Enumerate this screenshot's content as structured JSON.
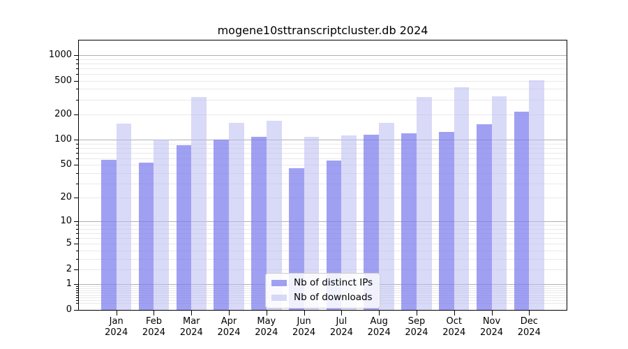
{
  "chart_data": {
    "type": "bar",
    "title": "mogene10sttranscriptcluster.db 2024",
    "categories": [
      "Jan",
      "Feb",
      "Mar",
      "Apr",
      "May",
      "Jun",
      "Jul",
      "Aug",
      "Sep",
      "Oct",
      "Nov",
      "Dec"
    ],
    "year": "2024",
    "series": [
      {
        "name": "Nb of distinct IPs",
        "color": "rgba(124,124,238,0.72)",
        "values": [
          58,
          53,
          86,
          100,
          108,
          46,
          57,
          115,
          120,
          124,
          154,
          215
        ]
      },
      {
        "name": "Nb of downloads",
        "color": "rgba(186,186,243,0.55)",
        "values": [
          155,
          100,
          320,
          160,
          168,
          108,
          112,
          160,
          320,
          420,
          330,
          505
        ]
      }
    ],
    "yscale": "log1p",
    "ylim": [
      0,
      1490
    ],
    "yticks": [
      0,
      1,
      2,
      5,
      10,
      20,
      50,
      100,
      200,
      500,
      1000
    ],
    "grid": true,
    "legend_position": "lower center",
    "grid_major_color": "#b0b0b0",
    "grid_minor_color": "#e9e9e9",
    "axis_color": "#000000"
  }
}
